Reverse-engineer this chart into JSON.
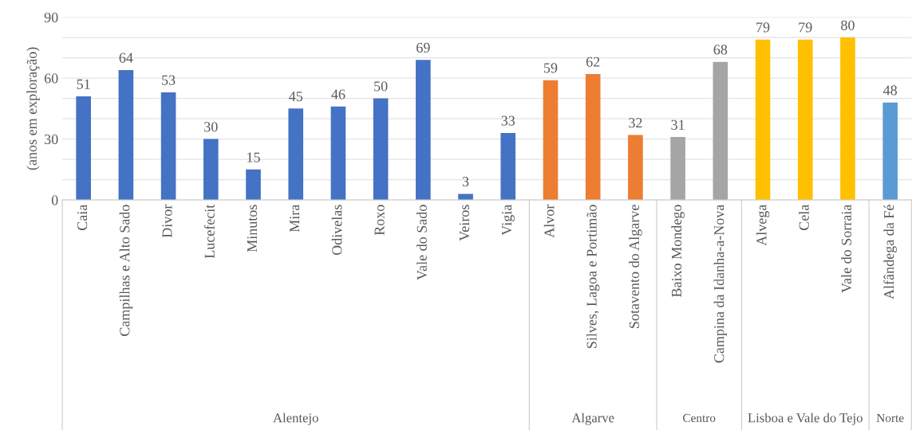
{
  "chart_data": {
    "type": "bar",
    "ylabel": "(anos em exploração)",
    "categories": [
      "Caia",
      "Campilhas e Alto Sado",
      "Divor",
      "Lucefecit",
      "Minutos",
      "Mira",
      "Odivelas",
      "Roxo",
      "Vale do Sado",
      "Veiros",
      "Vigia",
      "Alvor",
      "Silves, Lagoa e Portimão",
      "Sotavento do Algarve",
      "Baixo Mondego",
      "Campina da Idanha-a-Nova",
      "Alvega",
      "Cela",
      "Vale do Sorraia",
      "Alfândega da Fé"
    ],
    "series": [
      {
        "color": "#4472c4",
        "values": [
          51,
          64,
          53,
          30,
          15,
          45,
          46,
          50,
          69,
          3,
          33,
          null,
          null,
          null,
          null,
          null,
          null,
          null,
          null,
          null
        ]
      },
      {
        "color": "#ed7d31",
        "values": [
          null,
          null,
          null,
          null,
          null,
          null,
          null,
          null,
          null,
          null,
          null,
          59,
          62,
          32,
          null,
          null,
          null,
          null,
          null,
          null
        ]
      },
      {
        "color": "#a5a5a5",
        "values": [
          null,
          null,
          null,
          null,
          null,
          null,
          null,
          null,
          null,
          null,
          null,
          null,
          null,
          null,
          31,
          68,
          null,
          null,
          null,
          null
        ]
      },
      {
        "color": "#ffc000",
        "values": [
          null,
          null,
          null,
          null,
          null,
          null,
          null,
          null,
          null,
          null,
          null,
          null,
          null,
          null,
          null,
          null,
          79,
          79,
          80,
          null
        ]
      },
      {
        "color": "#5b9bd5",
        "values": [
          null,
          null,
          null,
          null,
          null,
          null,
          null,
          null,
          null,
          null,
          null,
          null,
          null,
          null,
          null,
          null,
          null,
          null,
          null,
          48
        ]
      }
    ],
    "ylim": [
      0,
      90
    ],
    "yticks": [
      0,
      {
        "value": 10,
        "label": null
      },
      {
        "value": 20,
        "label": null
      },
      30,
      {
        "value": 40,
        "label": null
      },
      {
        "value": 50,
        "label": null
      },
      60,
      {
        "value": 70,
        "label": null
      },
      {
        "value": 80,
        "label": null
      },
      90
    ],
    "annotations": [
      "Alentejo",
      "Algarve",
      "Centro",
      "Lisboa e Vale do Tejo",
      "Norte"
    ],
    "grid": "y",
    "data_labels": true,
    "legend": false
  }
}
